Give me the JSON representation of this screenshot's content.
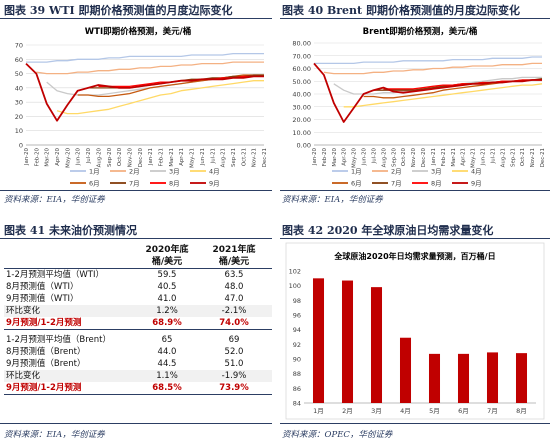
{
  "sections": {
    "fig39": "图表 39   WTI 即期价格预测值的月度边际变化",
    "fig40": "图表 40   Brent 即期价格预测值的月度边际变化",
    "fig41": "图表 41   未来油价预测情况",
    "fig42": "图表 42   2020 年全球原油日均需求量变化"
  },
  "sources": {
    "fig39": "资料来源：EIA，华创证券",
    "fig40": "资料来源：EIA，华创证券",
    "fig41": "资料来源：EIA，华创证券",
    "fig42": "资料来源：OPEC，华创证券"
  },
  "colors": {
    "m1": "#b4c7e7",
    "m2": "#f4b183",
    "m3": "#c9c9c9",
    "m4": "#ffd966",
    "m6": "#c55a11",
    "m7": "#843c0c",
    "m8": "#ff0000",
    "m9": "#c00000",
    "bar": "#c00000",
    "navy": "#1f2d4d"
  },
  "chart_data": [
    {
      "type": "line",
      "title": "WTI即期价格预测，美元/桶",
      "x": [
        "Jan-20",
        "Feb-20",
        "Mar-20",
        "Apr-20",
        "May-20",
        "Jun-20",
        "Jul-20",
        "Aug-20",
        "Sep-20",
        "Oct-20",
        "Nov-20",
        "Dec-20",
        "Jan-21",
        "Feb-21",
        "Mar-21",
        "Apr-21",
        "May-21",
        "Jun-21",
        "Jul-21",
        "Aug-21",
        "Sep-21",
        "Oct-21",
        "Nov-21",
        "Dec-21"
      ],
      "ylim": [
        0,
        70
      ],
      "yticks": [
        "0",
        "10",
        "20",
        "30",
        "40",
        "50",
        "60",
        "70"
      ],
      "series": [
        {
          "name": "1月",
          "color_key": "m1",
          "values": [
            58,
            58,
            58,
            59,
            59,
            60,
            60,
            60,
            61,
            61,
            62,
            62,
            62,
            62,
            62,
            62,
            63,
            63,
            63,
            63,
            64,
            64,
            64,
            64
          ]
        },
        {
          "name": "2月",
          "color_key": "m2",
          "values": [
            null,
            51,
            50,
            50,
            50,
            51,
            51,
            52,
            52,
            53,
            53,
            54,
            54,
            55,
            55,
            56,
            56,
            57,
            57,
            57,
            58,
            58,
            58,
            58
          ]
        },
        {
          "name": "3月",
          "color_key": "m3",
          "values": [
            null,
            null,
            44,
            38,
            36,
            35,
            35,
            35,
            36,
            37,
            38,
            39,
            40,
            41,
            42,
            43,
            44,
            45,
            46,
            47,
            47,
            48,
            48,
            48
          ]
        },
        {
          "name": "4月",
          "color_key": "m4",
          "values": [
            null,
            null,
            null,
            24,
            22,
            22,
            23,
            24,
            25,
            27,
            29,
            31,
            33,
            35,
            36,
            38,
            39,
            40,
            41,
            42,
            43,
            44,
            45,
            45
          ]
        },
        {
          "name": "6月",
          "color_key": "m6",
          "values": [
            null,
            null,
            null,
            null,
            null,
            35,
            35,
            34,
            34,
            35,
            36,
            38,
            40,
            41,
            42,
            43,
            44,
            45,
            46,
            47,
            48,
            49,
            49,
            49
          ]
        },
        {
          "name": "7月",
          "color_key": "m7",
          "values": [
            null,
            null,
            null,
            null,
            null,
            null,
            40,
            40,
            40,
            40,
            40,
            41,
            42,
            43,
            44,
            45,
            46,
            46,
            47,
            47,
            48,
            48,
            49,
            49
          ]
        },
        {
          "name": "8月",
          "color_key": "m8",
          "values": [
            null,
            null,
            null,
            null,
            null,
            null,
            null,
            41,
            41,
            41,
            41,
            42,
            43,
            44,
            44,
            45,
            45,
            46,
            46,
            47,
            47,
            48,
            48,
            48
          ]
        },
        {
          "name": "9月",
          "color_key": "m9",
          "values": [
            57,
            50,
            29,
            17,
            28,
            38,
            40,
            42,
            41,
            40,
            40,
            41,
            42,
            43,
            44,
            45,
            45,
            46,
            46,
            46,
            47,
            47,
            48,
            48
          ]
        }
      ]
    },
    {
      "type": "line",
      "title": "Brent即期价格预测，美元/桶",
      "x": [
        "Jan-20",
        "Feb-20",
        "Mar-20",
        "Apr-20",
        "May-20",
        "Jun-20",
        "Jul-20",
        "Aug-20",
        "Sep-20",
        "Oct-20",
        "Nov-20",
        "Dec-20",
        "Jan-21",
        "Feb-21",
        "Mar-21",
        "Apr-21",
        "May-21",
        "Jun-21",
        "Jul-21",
        "Aug-21",
        "Sep-21",
        "Oct-21",
        "Nov-21",
        "Dec-21"
      ],
      "ylim": [
        0,
        80
      ],
      "yticks": [
        "0.00",
        "10.00",
        "20.00",
        "30.00",
        "40.00",
        "50.00",
        "60.00",
        "70.00",
        "80.00"
      ],
      "series": [
        {
          "name": "1月",
          "color_key": "m1",
          "values": [
            64,
            64,
            64,
            64,
            64,
            65,
            65,
            65,
            65,
            66,
            66,
            66,
            66,
            66,
            67,
            67,
            67,
            67,
            68,
            68,
            68,
            68,
            69,
            69
          ]
        },
        {
          "name": "2月",
          "color_key": "m2",
          "values": [
            null,
            57,
            56,
            56,
            56,
            56,
            57,
            57,
            58,
            58,
            59,
            59,
            60,
            60,
            61,
            61,
            62,
            62,
            62,
            63,
            63,
            63,
            64,
            64
          ]
        },
        {
          "name": "3月",
          "color_key": "m3",
          "values": [
            null,
            null,
            48,
            43,
            40,
            40,
            40,
            41,
            41,
            42,
            43,
            44,
            45,
            46,
            47,
            48,
            49,
            50,
            51,
            52,
            52,
            53,
            53,
            53
          ]
        },
        {
          "name": "4月",
          "color_key": "m4",
          "values": [
            null,
            null,
            null,
            30,
            30,
            31,
            32,
            33,
            34,
            35,
            36,
            37,
            38,
            39,
            40,
            41,
            42,
            43,
            44,
            45,
            46,
            47,
            47,
            48
          ]
        },
        {
          "name": "6月",
          "color_key": "m6",
          "values": [
            null,
            null,
            null,
            null,
            null,
            38,
            38,
            37,
            37,
            38,
            39,
            40,
            41,
            43,
            44,
            45,
            46,
            47,
            48,
            49,
            50,
            50,
            51,
            51
          ]
        },
        {
          "name": "7月",
          "color_key": "m7",
          "values": [
            null,
            null,
            null,
            null,
            null,
            null,
            43,
            43,
            43,
            43,
            43,
            44,
            45,
            46,
            47,
            48,
            48,
            49,
            49,
            50,
            50,
            51,
            51,
            52
          ]
        },
        {
          "name": "8月",
          "color_key": "m8",
          "values": [
            null,
            null,
            null,
            null,
            null,
            null,
            null,
            44,
            44,
            44,
            44,
            45,
            46,
            47,
            47,
            48,
            48,
            49,
            49,
            50,
            50,
            51,
            51,
            51
          ]
        },
        {
          "name": "9月",
          "color_key": "m9",
          "values": [
            64,
            55,
            33,
            18,
            29,
            40,
            43,
            45,
            42,
            41,
            42,
            43,
            44,
            45,
            46,
            47,
            48,
            48,
            49,
            49,
            50,
            50,
            51,
            51
          ]
        }
      ]
    },
    {
      "type": "table",
      "columns": [
        "",
        "2020年底\n桶/美元",
        "2021年底\n桶/美元"
      ],
      "header": {
        "c1a": "2020年底",
        "c1b": "桶/美元",
        "c2a": "2021年底",
        "c2b": "桶/美元"
      },
      "rows": [
        [
          "1-2月预测平均值（WTI）",
          "59.5",
          "63.5"
        ],
        [
          "8月预测值（WTI）",
          "40.5",
          "48.0"
        ],
        [
          "9月预测值（WTI）",
          "41.0",
          "47.0"
        ],
        [
          "环比变化",
          "1.2%",
          "-2.1%"
        ],
        [
          "9月预测/1-2月预测",
          "68.9%",
          "74.0%"
        ],
        [
          "1-2月预测平均值（Brent）",
          "65",
          "69"
        ],
        [
          "8月预测值（Brent）",
          "44.0",
          "52.0"
        ],
        [
          "9月预测值（Brent）",
          "44.5",
          "51.0"
        ],
        [
          "环比变化",
          "1.1%",
          "-1.9%"
        ],
        [
          "9月预测/1-2月预测",
          "68.5%",
          "73.9%"
        ]
      ]
    },
    {
      "type": "bar",
      "title": "全球原油2020年日均需求量预测，百万桶/日",
      "categories": [
        "1月",
        "2月",
        "3月",
        "4月",
        "5月",
        "6月",
        "7月",
        "8月"
      ],
      "values": [
        101.0,
        100.7,
        99.8,
        92.9,
        90.7,
        90.7,
        90.9,
        90.8
      ],
      "ylim": [
        84,
        102
      ],
      "yticks": [
        "84",
        "86",
        "88",
        "90",
        "92",
        "94",
        "96",
        "98",
        "100",
        "102"
      ]
    }
  ]
}
